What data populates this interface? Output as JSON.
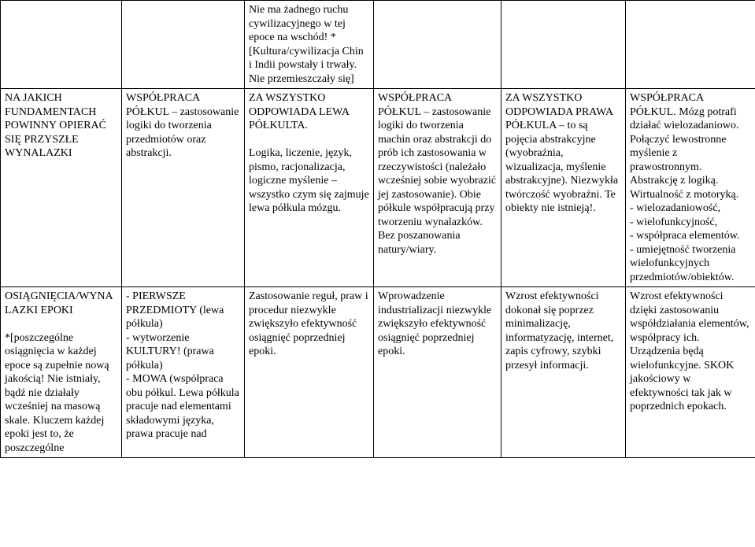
{
  "rows": [
    {
      "cells": [
        "",
        "",
        "Nie ma żadnego ruchu cywilizacyjnego w tej epoce na wschód! *[Kultura/cywilizacja Chin i Indii powstały i trwały. Nie przemieszczały się]",
        "",
        "",
        ""
      ]
    },
    {
      "cells": [
        "NA JAKICH FUNDAMENTACH POWINNY OPIERAĆ SIĘ PRZYSZŁE WYNALAZKI",
        "WSPÓŁPRACA PÓŁKUL – zastosowanie logiki do tworzenia przedmiotów oraz abstrakcji.",
        "ZA WSZYSTKO ODPOWIADA LEWA PÓŁKULTA.\n\nLogika, liczenie, język, pismo, racjonalizacja, logiczne myślenie – wszystko czym się zajmuje lewa półkula mózgu.",
        "WSPÓŁPRACA PÓŁKUL – zastosowanie logiki do tworzenia machin oraz abstrakcji do prób ich zastosowania w rzeczywistości (należało wcześniej sobie wyobrazić jej zastosowanie). Obie półkule współpracują przy tworzeniu wynalazków. Bez poszanowania natury/wiary.",
        "ZA WSZYSTKO ODPOWIADA PRAWA PÓŁKULA – to są pojęcia abstrakcyjne (wyobraźnia, wizualizacja, myślenie abstrakcyjne). Niezwykła twórczość wyobraźni. Te obiekty nie istnieją!.",
        "WSPÓŁPRACA PÓŁKUL. Mózg potrafi działać wielozadaniowo. Połączyć lewostronne myślenie z prawostronnym. Abstrakcję z logiką. Wirtualność z motoryką.\n- wielozadaniowość,\n- wielofunkcyjność,\n- współpraca elementów.\n- umiejętność tworzenia wielofunkcyjnych przedmiotów/obiektów."
      ]
    },
    {
      "cells": [
        "OSIĄGNIĘCIA/WYNALAZKI EPOKI\n\n*[poszczególne osiągnięcia w każdej epoce są zupełnie nową jakością! Nie istniały, bądź nie działały wcześniej na masową skale. Kluczem każdej epoki jest to, że poszczególne",
        "- PIERWSZE PRZEDMIOTY (lewa półkula)\n- wytworzenie KULTURY! (prawa półkula)\n- MOWA (współpraca obu półkul. Lewa półkula pracuje nad elementami składowymi języka, prawa pracuje nad",
        "Zastosowanie reguł, praw i procedur niezwykle zwiększyło efektywność osiągnięć poprzedniej epoki.",
        "Wprowadzenie industrializacji niezwykle zwiększyło efektywność osiągnięć poprzedniej epoki.",
        "Wzrost efektywności dokonał się poprzez minimalizację, informatyzację, internet, zapis cyfrowy, szybki przesył informacji.",
        "Wzrost efektywności dzięki zastosowaniu współdziałania elementów, współpracy ich. Urządzenia będą wielofunkcyjne. SKOK jakościowy w efektywności tak jak w poprzednich epokach."
      ]
    }
  ]
}
